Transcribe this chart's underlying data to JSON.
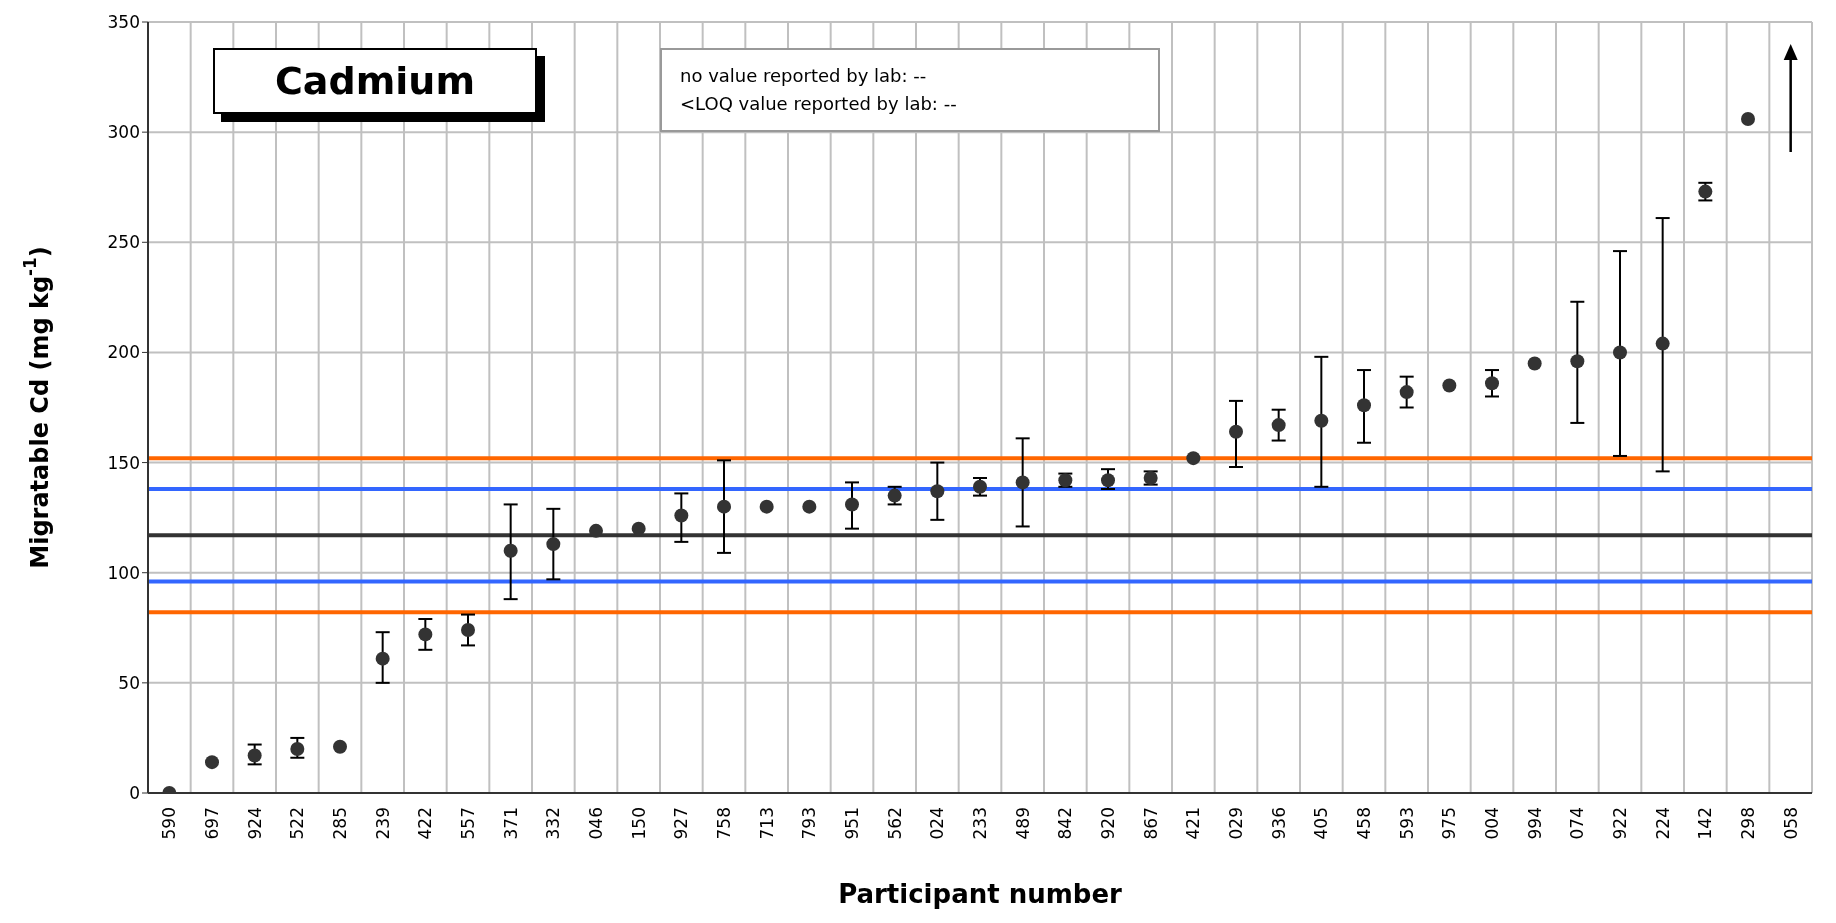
{
  "chart_data": {
    "type": "scatter",
    "title": "Cadmium",
    "xlabel": "Participant number",
    "ylabel": "Migratable Cd (mg kg$^{-1}$)",
    "annotations": [
      "no value reported by lab: --",
      "<LOQ value reported by lab: --"
    ],
    "categories": [
      "590",
      "697",
      "924",
      "522",
      "285",
      "239",
      "422",
      "557",
      "371",
      "332",
      "046",
      "150",
      "927",
      "758",
      "713",
      "793",
      "951",
      "562",
      "024",
      "233",
      "489",
      "842",
      "920",
      "867",
      "421",
      "029",
      "936",
      "405",
      "458",
      "593",
      "975",
      "004",
      "994",
      "074",
      "922",
      "224",
      "142",
      "298",
      "058"
    ],
    "series": [
      {
        "color": "#333333",
        "values": [
          0,
          14,
          17,
          20,
          21,
          61,
          72,
          74,
          110,
          113,
          119,
          120,
          126,
          130,
          130,
          130,
          131,
          135,
          137,
          139,
          141,
          142,
          142,
          143,
          152,
          164,
          167,
          169,
          176,
          182,
          185,
          186,
          195,
          196,
          200,
          204,
          273,
          306,
          null
        ],
        "errors": [
          null,
          null,
          [
            13,
            22
          ],
          [
            16,
            25
          ],
          null,
          [
            50,
            73
          ],
          [
            65,
            79
          ],
          [
            67,
            81
          ],
          [
            88,
            131
          ],
          [
            97,
            129
          ],
          null,
          null,
          [
            114,
            136
          ],
          [
            109,
            151
          ],
          null,
          null,
          [
            120,
            141
          ],
          [
            131,
            139
          ],
          [
            124,
            150
          ],
          [
            135,
            143
          ],
          [
            121,
            161
          ],
          [
            139,
            145
          ],
          [
            138,
            147
          ],
          [
            140,
            146
          ],
          null,
          [
            148,
            178
          ],
          [
            160,
            174
          ],
          [
            139,
            198
          ],
          [
            159,
            192
          ],
          [
            175,
            189
          ],
          null,
          [
            180,
            192
          ],
          null,
          [
            168,
            223
          ],
          [
            153,
            246
          ],
          [
            146,
            261
          ],
          [
            269,
            277
          ],
          null,
          null
        ]
      }
    ],
    "ylim": [
      0,
      350
    ],
    "yticks": [
      0,
      50,
      100,
      150,
      200,
      250,
      300,
      350
    ],
    "grid": true,
    "marker": "circle",
    "ref_lines": [
      {
        "axis": "y",
        "value": 152,
        "color": "#ff6600"
      },
      {
        "axis": "y",
        "value": 138,
        "color": "#3366ff"
      },
      {
        "axis": "y",
        "value": 117,
        "color": "#333333"
      },
      {
        "axis": "y",
        "value": 96,
        "color": "#3366ff"
      },
      {
        "axis": "y",
        "value": 82,
        "color": "#ff6600"
      }
    ]
  }
}
